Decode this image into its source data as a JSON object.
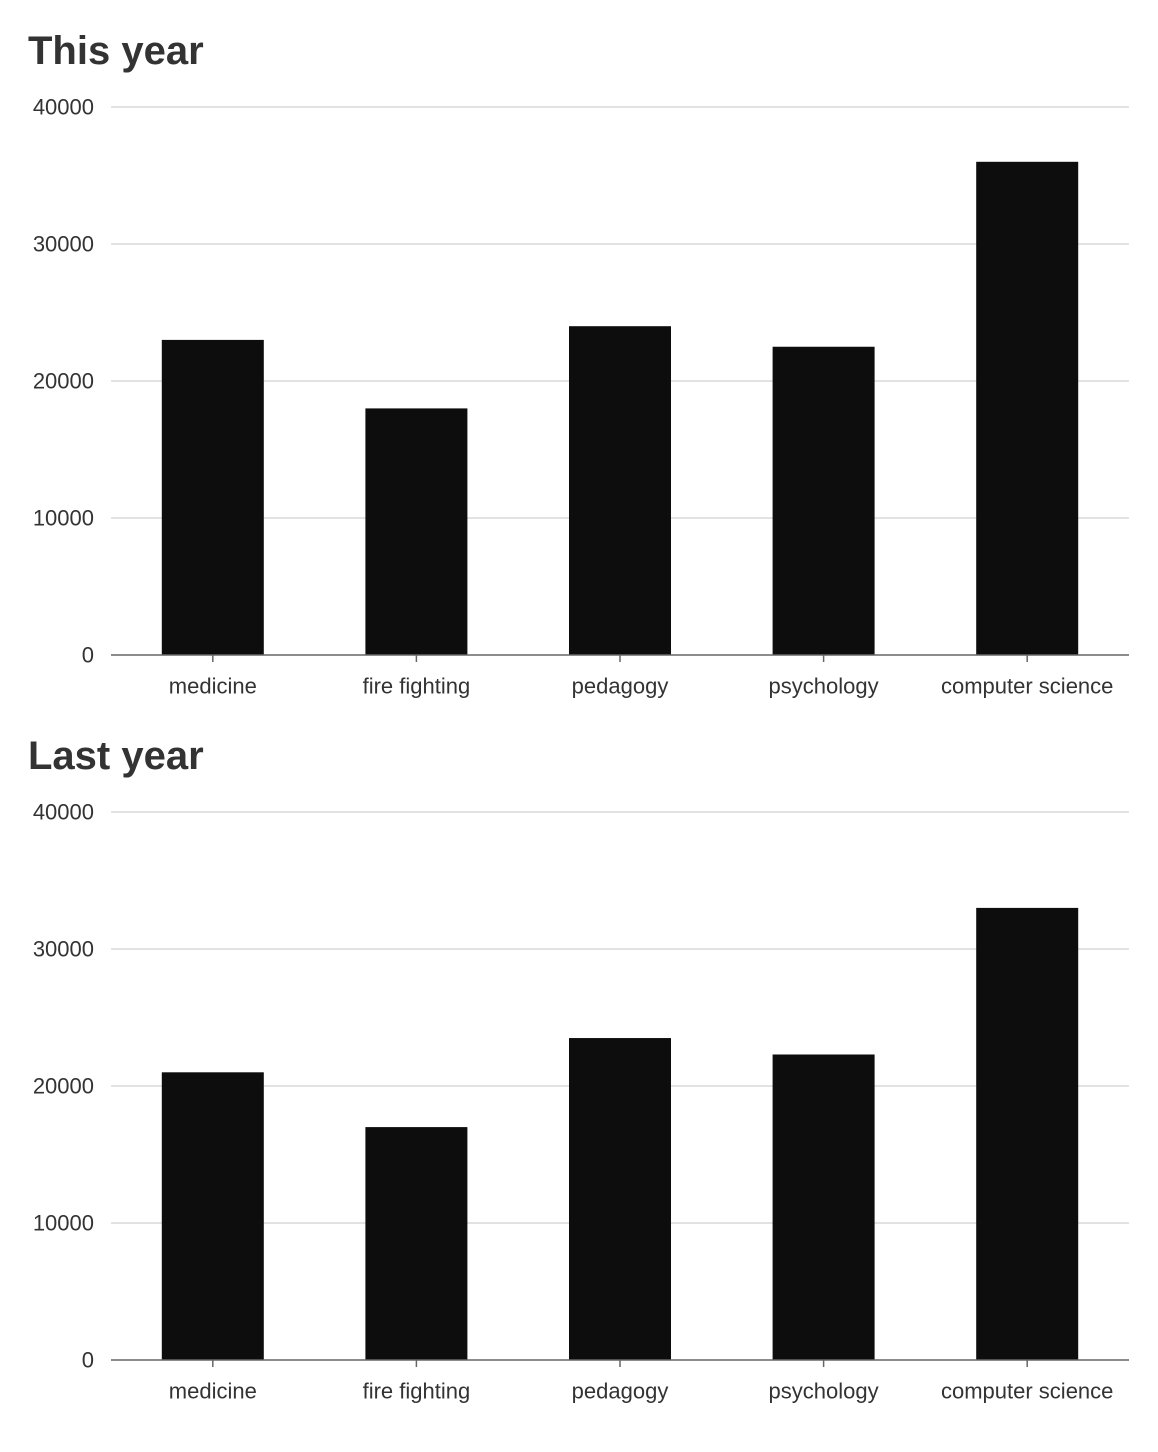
{
  "chart_data": [
    {
      "type": "bar",
      "title": "This year",
      "xlabel": "",
      "ylabel": "",
      "categories": [
        "medicine",
        "fire fighting",
        "pedagogy",
        "psychology",
        "computer science"
      ],
      "values": [
        23000,
        18000,
        24000,
        22500,
        36000
      ],
      "ylim": [
        0,
        40000
      ],
      "yticks": [
        0,
        10000,
        20000,
        30000,
        40000
      ],
      "ytick_labels": [
        "0",
        "10000",
        "20000",
        "30000",
        "40000"
      ],
      "grid": true,
      "bar_color": "#0d0d0d",
      "grid_color": "#d9d9d9",
      "axis_color": "#666666"
    },
    {
      "type": "bar",
      "title": "Last year",
      "xlabel": "",
      "ylabel": "",
      "categories": [
        "medicine",
        "fire fighting",
        "pedagogy",
        "psychology",
        "computer science"
      ],
      "values": [
        21000,
        17000,
        23500,
        22300,
        33000
      ],
      "ylim": [
        0,
        40000
      ],
      "yticks": [
        0,
        10000,
        20000,
        30000,
        40000
      ],
      "ytick_labels": [
        "0",
        "10000",
        "20000",
        "30000",
        "40000"
      ],
      "grid": true,
      "bar_color": "#0d0d0d",
      "grid_color": "#d9d9d9",
      "axis_color": "#666666"
    }
  ]
}
